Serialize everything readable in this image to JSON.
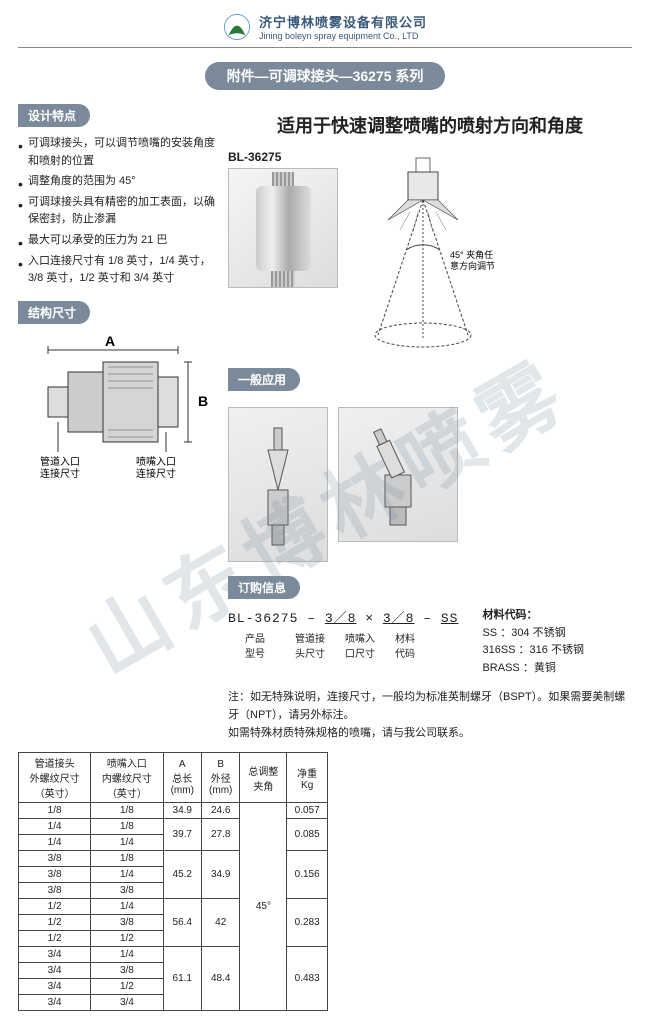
{
  "company": {
    "cn": "济宁博林喷雾设备有限公司",
    "en": "Jining boleyn spray equipment Co., LTD"
  },
  "title": "附件—可调球接头—36275 系列",
  "subtitle": "适用于快速调整喷嘴的喷射方向和角度",
  "sections": {
    "design": "设计特点",
    "struct": "结构尺寸",
    "app": "一般应用",
    "order": "订购信息"
  },
  "product_label": "BL-36275",
  "features": [
    "可调球接头，可以调节喷嘴的安装角度和喷射的位置",
    "调整角度的范围为 45°",
    "可调球接头具有精密的加工表面，以确保密封，防止渗漏",
    "最大可以承受的压力为 21 巴",
    "入口连接尺寸有 1/8 英寸，1/4 英寸，3/8 英寸，1/2 英寸和 3/4 英寸"
  ],
  "angle_label": "45° 夹角任意方向调节",
  "struct_labels": {
    "A": "A",
    "B": "B",
    "pipe": "管道入口\n连接尺寸",
    "nozzle": "喷嘴入口\n连接尺寸"
  },
  "table": {
    "headers": [
      "管道接头\n外螺纹尺寸\n（英寸）",
      "喷嘴入口\n内螺纹尺寸\n（英寸）",
      "A\n总长\n(mm)",
      "B\n外径\n(mm)",
      "总调整\n夹角",
      "净重\nKg"
    ],
    "groups": [
      {
        "A": "34.9",
        "B": "24.6",
        "w": "0.057",
        "rows": [
          [
            "1/8",
            "1/8"
          ]
        ]
      },
      {
        "A": "39.7",
        "B": "27.8",
        "w": "0.085",
        "rows": [
          [
            "1/4",
            "1/8"
          ],
          [
            "1/4",
            "1/4"
          ]
        ]
      },
      {
        "A": "45.2",
        "B": "34.9",
        "w": "0.156",
        "rows": [
          [
            "3/8",
            "1/8"
          ],
          [
            "3/8",
            "1/4"
          ],
          [
            "3/8",
            "3/8"
          ]
        ]
      },
      {
        "A": "56.4",
        "B": "42",
        "w": "0.283",
        "rows": [
          [
            "1/2",
            "1/4"
          ],
          [
            "1/2",
            "3/8"
          ],
          [
            "1/2",
            "1/2"
          ]
        ]
      },
      {
        "A": "61.1",
        "B": "48.4",
        "w": "0.483",
        "rows": [
          [
            "3/4",
            "1/4"
          ],
          [
            "3/4",
            "3/8"
          ],
          [
            "3/4",
            "1/2"
          ],
          [
            "3/4",
            "3/4"
          ]
        ]
      }
    ],
    "angle": "45°"
  },
  "order": {
    "code_prefix": "BL-36275",
    "seg1": "3／8",
    "seg2": "3／8",
    "seg3": "SS",
    "labels": [
      "产品\n型号",
      "管道接\n头尺寸",
      "喷嘴入\n口尺寸",
      "材料\n代码"
    ],
    "mat_title": "材料代码：",
    "materials": [
      [
        "SS",
        "304 不锈钢"
      ],
      [
        "316SS",
        "316 不锈钢"
      ],
      [
        "BRASS",
        "黄铜"
      ]
    ]
  },
  "note": [
    "注：如无特殊说明，连接尺寸，一般均为标准英制螺牙（BSPT）。如果需要美制螺牙（NPT），请另外标注。",
    "如需特殊材质特殊规格的喷嘴，请与我公司联系。"
  ],
  "watermark": "山东博林喷雾",
  "colors": {
    "tag_bg": "#7a8a9a",
    "text": "#222222",
    "border": "#444444",
    "company": "#3a5a7a"
  }
}
